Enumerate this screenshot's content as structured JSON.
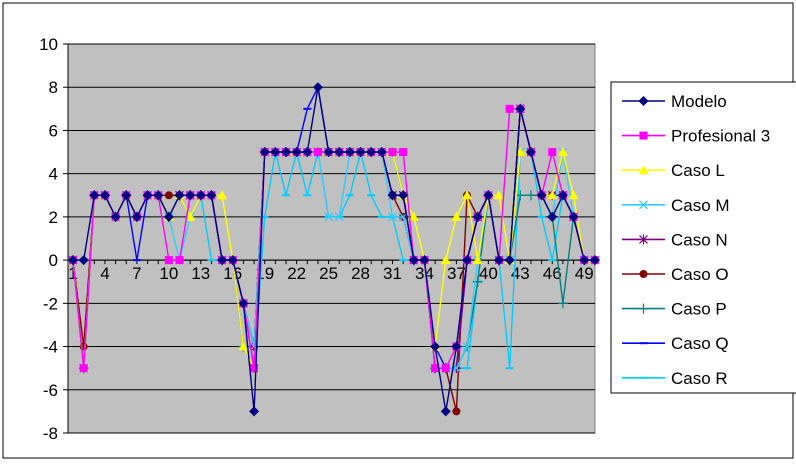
{
  "chart_data": {
    "type": "line",
    "x": [
      1,
      2,
      3,
      4,
      5,
      6,
      7,
      8,
      9,
      10,
      11,
      12,
      13,
      14,
      15,
      16,
      17,
      18,
      19,
      20,
      21,
      22,
      23,
      24,
      25,
      26,
      27,
      28,
      29,
      30,
      31,
      32,
      33,
      34,
      35,
      36,
      37,
      38,
      39,
      40,
      41,
      42,
      43,
      44,
      45,
      46,
      47,
      48,
      49,
      50
    ],
    "x_tick_labels": [
      "1",
      "4",
      "7",
      "10",
      "13",
      "16",
      "19",
      "22",
      "25",
      "28",
      "31",
      "34",
      "37",
      "40",
      "43",
      "46",
      "49"
    ],
    "x_tick_indices": [
      1,
      4,
      7,
      10,
      13,
      16,
      19,
      22,
      25,
      28,
      31,
      34,
      37,
      40,
      43,
      46,
      49
    ],
    "y_ticks": [
      10,
      8,
      6,
      4,
      2,
      0,
      -2,
      -4,
      -6,
      -8
    ],
    "ylim": [
      -8,
      10
    ],
    "grid": true,
    "plot_background": "#c0c0c0",
    "legend_position": "right",
    "series": [
      {
        "name": "Modelo",
        "color": "#000080",
        "marker": "diamond",
        "values": [
          0,
          0,
          3,
          3,
          2,
          3,
          2,
          3,
          3,
          2,
          3,
          3,
          3,
          3,
          0,
          0,
          -2,
          -7,
          5,
          5,
          5,
          5,
          5,
          8,
          5,
          5,
          5,
          5,
          5,
          5,
          3,
          3,
          0,
          0,
          -4,
          -7,
          -4,
          0,
          2,
          3,
          0,
          0,
          7,
          5,
          3,
          2,
          3,
          2,
          0,
          0
        ]
      },
      {
        "name": "Profesional 3",
        "color": "#ff00ff",
        "marker": "square",
        "values": [
          0,
          -5,
          3,
          3,
          2,
          3,
          2,
          3,
          3,
          0,
          0,
          3,
          3,
          3,
          0,
          0,
          -2,
          -5,
          5,
          5,
          5,
          5,
          5,
          5,
          5,
          5,
          5,
          5,
          5,
          5,
          5,
          5,
          0,
          0,
          -5,
          -5,
          -4,
          0,
          2,
          3,
          0,
          7,
          7,
          5,
          3,
          5,
          3,
          2,
          0,
          0
        ]
      },
      {
        "name": "Caso L",
        "color": "#ffff00",
        "marker": "triangle",
        "values": [
          0,
          -5,
          3,
          3,
          2,
          3,
          2,
          3,
          3,
          2,
          3,
          2,
          3,
          3,
          3,
          0,
          -4,
          -5,
          5,
          5,
          5,
          5,
          5,
          5,
          5,
          5,
          5,
          5,
          5,
          5,
          5,
          3,
          2,
          0,
          -4,
          0,
          2,
          3,
          0,
          3,
          3,
          0,
          5,
          5,
          3,
          3,
          5,
          3,
          0,
          0
        ]
      },
      {
        "name": "Caso M",
        "color": "#33ccff",
        "marker": "x",
        "values": [
          0,
          -5,
          3,
          3,
          2,
          3,
          2,
          3,
          3,
          2,
          0,
          2,
          3,
          3,
          0,
          0,
          -2,
          -4,
          5,
          5,
          5,
          5,
          5,
          5,
          2,
          2,
          5,
          5,
          5,
          5,
          2,
          2,
          0,
          0,
          -5,
          -5,
          -5,
          -4,
          0,
          3,
          0,
          0,
          5,
          5,
          3,
          2,
          5,
          2,
          0,
          0
        ]
      },
      {
        "name": "Caso N",
        "color": "#800080",
        "marker": "star",
        "values": [
          0,
          -5,
          3,
          3,
          2,
          3,
          2,
          3,
          3,
          2,
          3,
          3,
          3,
          3,
          0,
          0,
          -2,
          -5,
          5,
          5,
          5,
          5,
          5,
          5,
          5,
          5,
          5,
          5,
          5,
          5,
          3,
          3,
          0,
          0,
          -5,
          -5,
          -5,
          0,
          2,
          3,
          0,
          0,
          7,
          5,
          3,
          3,
          3,
          2,
          0,
          0
        ]
      },
      {
        "name": "Caso O",
        "color": "#800000",
        "marker": "circle",
        "values": [
          0,
          -4,
          3,
          3,
          2,
          3,
          2,
          3,
          3,
          3,
          3,
          3,
          3,
          3,
          0,
          0,
          -2,
          -4,
          5,
          5,
          5,
          5,
          5,
          5,
          5,
          5,
          5,
          5,
          5,
          5,
          3,
          2,
          0,
          0,
          -5,
          -5,
          -7,
          3,
          2,
          3,
          0,
          0,
          7,
          5,
          3,
          3,
          3,
          2,
          0,
          0
        ]
      },
      {
        "name": "Caso P",
        "color": "#008080",
        "marker": "plus",
        "values": [
          0,
          -5,
          3,
          3,
          2,
          3,
          2,
          3,
          3,
          2,
          3,
          3,
          3,
          3,
          0,
          0,
          -4,
          -4,
          5,
          5,
          5,
          5,
          5,
          5,
          5,
          5,
          5,
          5,
          5,
          5,
          5,
          3,
          0,
          0,
          -5,
          -5,
          -5,
          -4,
          -1,
          3,
          0,
          0,
          3,
          3,
          3,
          2,
          -2,
          2,
          0,
          0
        ]
      },
      {
        "name": "Caso Q",
        "color": "#0000ff",
        "marker": "dash",
        "values": [
          0,
          -5,
          3,
          3,
          2,
          3,
          0,
          3,
          3,
          2,
          3,
          3,
          3,
          3,
          0,
          0,
          -2,
          -4,
          5,
          5,
          5,
          5,
          7,
          8,
          5,
          5,
          5,
          5,
          5,
          5,
          3,
          3,
          0,
          0,
          -4,
          -5,
          -5,
          0,
          2,
          3,
          0,
          0,
          7,
          5,
          3,
          3,
          3,
          2,
          0,
          0
        ]
      },
      {
        "name": "Caso R",
        "color": "#00ccff",
        "marker": "dash",
        "values": [
          0,
          -5,
          3,
          3,
          2,
          3,
          2,
          3,
          3,
          2,
          3,
          2,
          3,
          0,
          0,
          0,
          -4,
          -5,
          2,
          5,
          3,
          5,
          3,
          5,
          2,
          2,
          3,
          5,
          3,
          2,
          2,
          0,
          0,
          0,
          -5,
          -5,
          -5,
          -5,
          -1,
          3,
          0,
          -5,
          5,
          5,
          2,
          0,
          3,
          2,
          0,
          0
        ]
      }
    ]
  }
}
